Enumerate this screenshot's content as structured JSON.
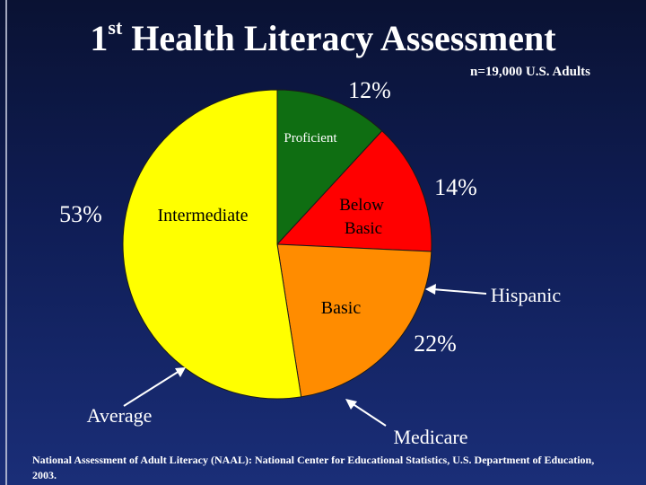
{
  "title": {
    "prefix": "1",
    "superscript": "st",
    "main": " Health Literacy Assessment"
  },
  "chart_data": {
    "type": "pie",
    "title": "1st Health Literacy Assessment",
    "subtitle": "n=19,000 U.S. Adults",
    "slices": [
      {
        "label": "Proficient",
        "value": 12,
        "color": "#0f6e12",
        "text_color": "#ffffff"
      },
      {
        "label": "Below Basic",
        "value": 14,
        "color": "#ff0000",
        "text_color": "#000000"
      },
      {
        "label": "Basic",
        "value": 22,
        "color": "#ff8c00",
        "text_color": "#000000"
      },
      {
        "label": "Intermediate",
        "value": 53,
        "color": "#ffff00",
        "text_color": "#000000"
      }
    ],
    "percent_labels": [
      "12%",
      "14%",
      "22%",
      "53%"
    ],
    "callouts": [
      "Hispanic",
      "Average",
      "Medicare"
    ]
  },
  "footer": {
    "source": "National Assessment of Adult Literacy (NAAL): National Center for Educational Statistics, U.S. Department of Education, 2003."
  }
}
